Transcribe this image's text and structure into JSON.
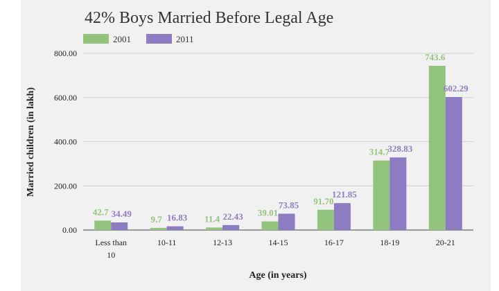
{
  "chart_data": {
    "type": "bar",
    "title": "42% Boys Married Before Legal Age",
    "xlabel": "Age (in years)",
    "ylabel": "Married children (in lakh)",
    "categories": [
      [
        "Less than",
        "10"
      ],
      [
        "10-11"
      ],
      [
        "12-13"
      ],
      [
        "14-15"
      ],
      [
        "16-17"
      ],
      [
        "18-19"
      ],
      [
        "20-21"
      ]
    ],
    "series": [
      {
        "name": "2001",
        "color": "#93c47d",
        "values": [
          42.7,
          9.7,
          11.4,
          39.01,
          91.7,
          314.7,
          743.6
        ],
        "labels": [
          "42.7",
          "9.7",
          "11.4",
          "39.01",
          "91.70",
          "314.7",
          "743.6"
        ]
      },
      {
        "name": "2011",
        "color": "#8e7cc3",
        "values": [
          34.49,
          16.83,
          22.43,
          73.85,
          121.85,
          328.83,
          602.29
        ],
        "labels": [
          "34.49",
          "16.83",
          "22.43",
          "73.85",
          "121.85",
          "328.83",
          "602.29"
        ]
      }
    ],
    "yticks": [
      "0.00",
      "200.00",
      "400.00",
      "600.00",
      "800.00"
    ],
    "ylim": [
      0,
      800
    ],
    "grid": true,
    "legend_position": "top-left"
  }
}
